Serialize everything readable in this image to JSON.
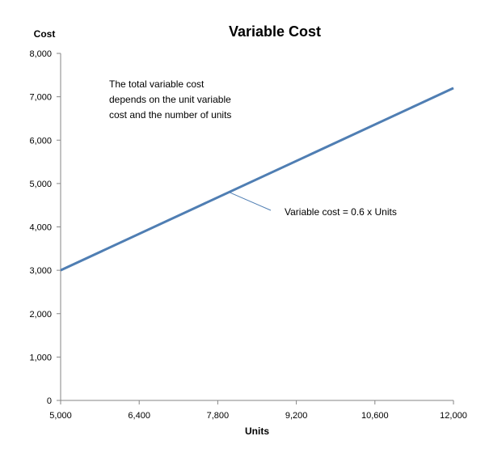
{
  "chart_data": {
    "type": "line",
    "title": "Variable  Cost",
    "xlabel": "Units",
    "ylabel": "Cost",
    "xlim": [
      5000,
      12000
    ],
    "ylim": [
      0,
      8000
    ],
    "x_ticks": [
      "5,000",
      "6,400",
      "7,800",
      "9,200",
      "10,600",
      "12,000"
    ],
    "y_ticks": [
      "0",
      "1,000",
      "2,000",
      "3,000",
      "4,000",
      "5,000",
      "6,000",
      "7,000",
      "8,000"
    ],
    "x_tick_values": [
      5000,
      6400,
      7800,
      9200,
      10600,
      12000
    ],
    "y_tick_values": [
      0,
      1000,
      2000,
      3000,
      4000,
      5000,
      6000,
      7000,
      8000
    ],
    "grid": false,
    "legend": "none",
    "series": [
      {
        "color": "#4f7eb3",
        "x": [
          5000,
          12000
        ],
        "y": [
          3000,
          7200
        ]
      }
    ],
    "annotations": [
      {
        "lines": [
          "The total variable cost",
          "depends on the unit variable",
          "cost and the number of units"
        ]
      },
      {
        "text": "Variable cost = 0.6 x Units",
        "points_to": [
          8000,
          4800
        ]
      }
    ]
  }
}
